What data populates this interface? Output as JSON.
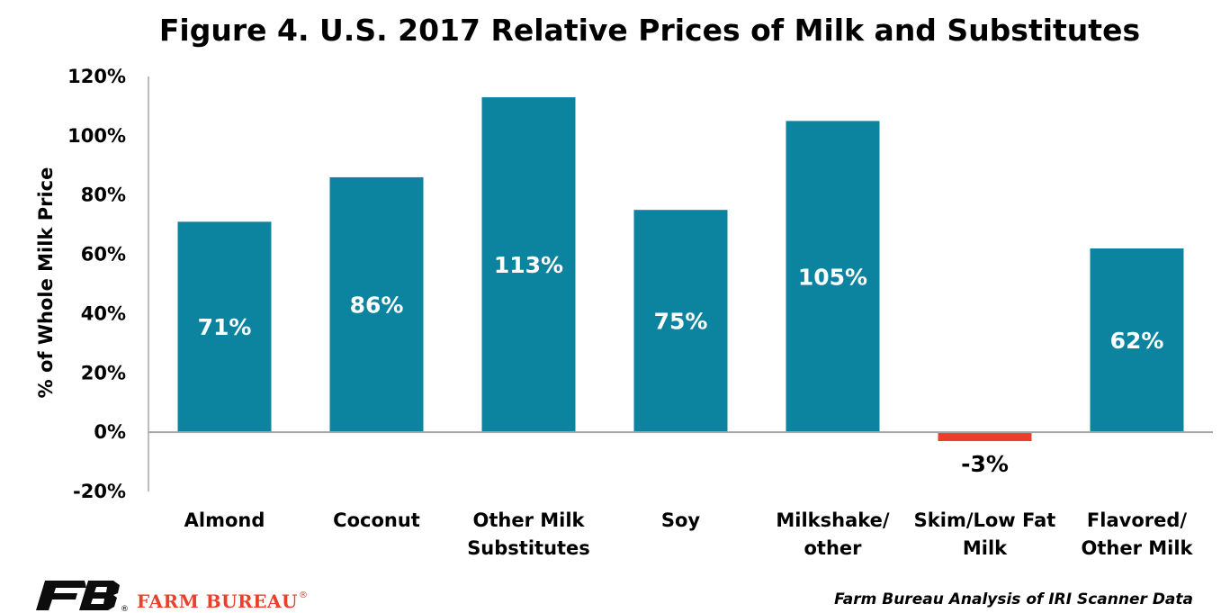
{
  "colors": {
    "bar_positive": "#0c84a0",
    "bar_negative": "#e8402b",
    "axis": "#a6a6a6",
    "text": "#000000",
    "brand_red": "#e8402b",
    "logo": "#0d0d0d"
  },
  "chart_data": {
    "type": "bar",
    "title": "Figure 4. U.S. 2017 Relative Prices of Milk and Substitutes",
    "ylabel": "% of Whole Milk Price",
    "xlabel": "",
    "ylim": [
      -20,
      120
    ],
    "yticks": [
      120,
      100,
      80,
      60,
      40,
      20,
      0,
      -20
    ],
    "ytick_labels": [
      "120%",
      "100%",
      "80%",
      "60%",
      "40%",
      "20%",
      "0%",
      "-20%"
    ],
    "grid": false,
    "legend": "none",
    "categories": [
      [
        "Almond"
      ],
      [
        "Coconut"
      ],
      [
        "Other Milk",
        "Substitutes"
      ],
      [
        "Soy"
      ],
      [
        "Milkshake/",
        "other"
      ],
      [
        "Skim/Low Fat",
        "Milk"
      ],
      [
        "Flavored/",
        "Other Milk"
      ]
    ],
    "values": [
      71,
      86,
      113,
      75,
      105,
      -3,
      62
    ],
    "data_labels": [
      "71%",
      "86%",
      "113%",
      "75%",
      "105%",
      "-3%",
      "62%"
    ]
  },
  "footer": {
    "brand": "FARM BUREAU",
    "registered": "®",
    "source": "Farm Bureau Analysis of  IRI Scanner Data"
  }
}
